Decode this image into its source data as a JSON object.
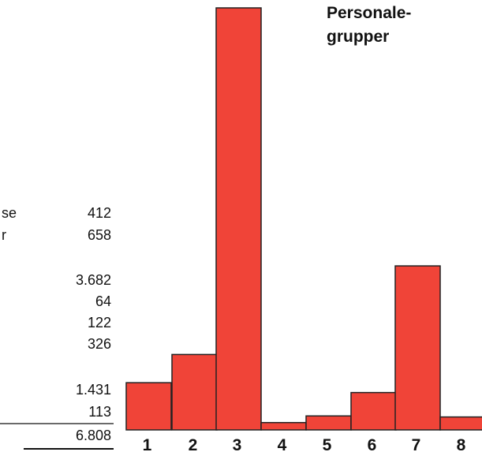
{
  "chart_data": {
    "type": "bar",
    "title_lines": [
      "Personale-",
      "grupper"
    ],
    "categories": [
      "1",
      "2",
      "3",
      "4",
      "5",
      "6",
      "7",
      "8"
    ],
    "values": [
      412,
      658,
      3682,
      64,
      122,
      326,
      1431,
      113
    ],
    "value_labels": [
      "412",
      "658",
      "3.682",
      "64",
      "122",
      "326",
      "1.431",
      "113"
    ],
    "total_label": "6.808",
    "row_label_fragments": [
      "se",
      "r"
    ],
    "bar_color": "#f04438",
    "edge_color": "#222222"
  }
}
